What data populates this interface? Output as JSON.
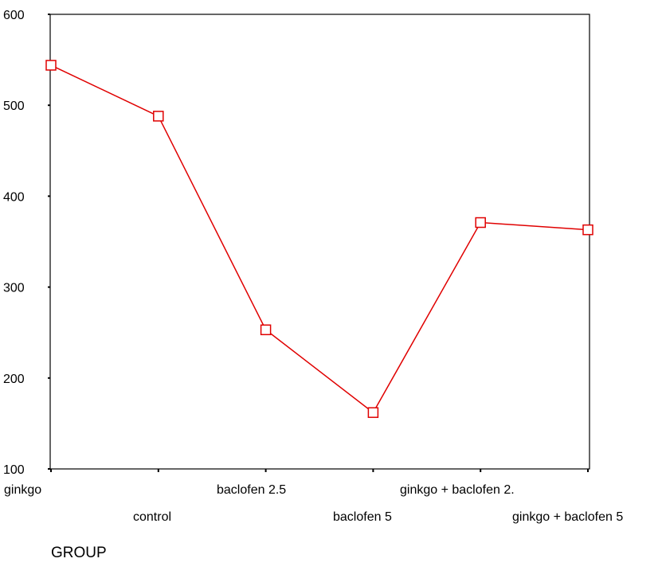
{
  "chart_data": {
    "type": "line",
    "title": "",
    "xlabel": "GROUP",
    "ylabel": "",
    "categories": [
      "ginkgo",
      "control",
      "baclofen 2.5",
      "baclofen 5",
      "ginkgo + baclofen 2.",
      "ginkgo + baclofen 5"
    ],
    "series": [
      {
        "values": [
          544,
          488,
          253,
          162,
          371,
          363
        ]
      }
    ],
    "ylim": [
      100,
      600
    ],
    "yticks": [
      100,
      200,
      300,
      400,
      500,
      600
    ],
    "grid": false,
    "legend": "none",
    "colors": {
      "series": "#e00000",
      "axes": "#000000"
    },
    "marker": "open-square"
  }
}
